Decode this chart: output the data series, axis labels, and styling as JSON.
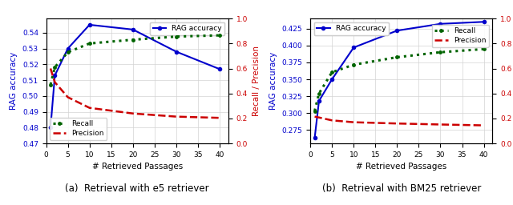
{
  "e5": {
    "x": [
      1,
      2,
      5,
      10,
      20,
      30,
      40
    ],
    "rag_accuracy": [
      0.48,
      0.513,
      0.53,
      0.545,
      0.542,
      0.528,
      0.517
    ],
    "recall": [
      0.47,
      0.61,
      0.73,
      0.8,
      0.83,
      0.855,
      0.865
    ],
    "precision": [
      0.6,
      0.49,
      0.37,
      0.285,
      0.24,
      0.215,
      0.205
    ],
    "rag_ylim": [
      0.47,
      0.549
    ],
    "recall_ylim": [
      0.0,
      1.0
    ],
    "rag_yticks": [
      0.47,
      0.48,
      0.49,
      0.5,
      0.51,
      0.52,
      0.53,
      0.54
    ],
    "subtitle": "(a)  Retrieval with e5 retriever",
    "legend_rag_loc": "upper right",
    "legend_rp_loc": "lower left"
  },
  "bm25": {
    "x": [
      1,
      2,
      5,
      10,
      20,
      30,
      40
    ],
    "rag_accuracy": [
      0.263,
      0.318,
      0.35,
      0.397,
      0.422,
      0.432,
      0.435
    ],
    "recall": [
      0.26,
      0.4,
      0.57,
      0.63,
      0.69,
      0.73,
      0.755
    ],
    "precision": [
      0.215,
      0.208,
      0.185,
      0.17,
      0.16,
      0.152,
      0.145
    ],
    "rag_ylim": [
      0.255,
      0.44
    ],
    "recall_ylim": [
      0.0,
      1.0
    ],
    "rag_yticks": [
      0.275,
      0.3,
      0.325,
      0.35,
      0.375,
      0.4,
      0.425
    ],
    "subtitle": "(b)  Retrieval with BM25 retriever",
    "legend_rag_loc": "upper left",
    "legend_rp_loc": "upper right"
  },
  "rag_color": "#0000cc",
  "recall_color": "#006400",
  "precision_color": "#cc0000",
  "xlabel": "# Retrieved Passages",
  "ylabel_left": "RAG accuracy",
  "ylabel_right": "Recall / Precision",
  "legend_rag": "RAG accuracy",
  "legend_recall": "Recall",
  "legend_precision": "Precision"
}
